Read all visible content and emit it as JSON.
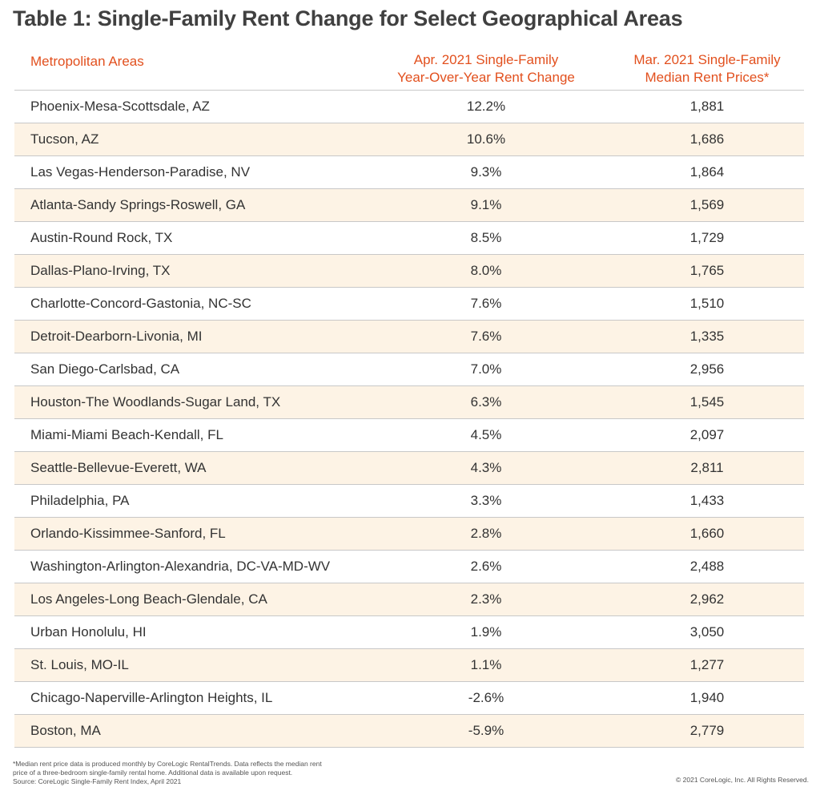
{
  "title": "Table 1: Single-Family Rent Change for Select Geographical Areas",
  "headers": {
    "area": "Metropolitan Areas",
    "change_line1": "Apr. 2021 Single-Family",
    "change_line2": "Year-Over-Year Rent Change",
    "rent_line1": "Mar. 2021 Single-Family",
    "rent_line2": "Median Rent Prices*"
  },
  "rows": [
    {
      "area": "Phoenix-Mesa-Scottsdale, AZ",
      "change": "12.2%",
      "rent": "1,881"
    },
    {
      "area": "Tucson, AZ",
      "change": "10.6%",
      "rent": "1,686"
    },
    {
      "area": "Las Vegas-Henderson-Paradise, NV",
      "change": "9.3%",
      "rent": "1,864"
    },
    {
      "area": "Atlanta-Sandy Springs-Roswell, GA",
      "change": "9.1%",
      "rent": "1,569"
    },
    {
      "area": "Austin-Round Rock, TX",
      "change": "8.5%",
      "rent": "1,729"
    },
    {
      "area": "Dallas-Plano-Irving, TX",
      "change": "8.0%",
      "rent": "1,765"
    },
    {
      "area": "Charlotte-Concord-Gastonia, NC-SC",
      "change": "7.6%",
      "rent": "1,510"
    },
    {
      "area": "Detroit-Dearborn-Livonia, MI",
      "change": "7.6%",
      "rent": "1,335"
    },
    {
      "area": "San Diego-Carlsbad, CA",
      "change": "7.0%",
      "rent": "2,956"
    },
    {
      "area": "Houston-The Woodlands-Sugar Land, TX",
      "change": "6.3%",
      "rent": "1,545"
    },
    {
      "area": "Miami-Miami Beach-Kendall, FL",
      "change": "4.5%",
      "rent": "2,097"
    },
    {
      "area": "Seattle-Bellevue-Everett, WA",
      "change": "4.3%",
      "rent": "2,811"
    },
    {
      "area": "Philadelphia, PA",
      "change": "3.3%",
      "rent": "1,433"
    },
    {
      "area": "Orlando-Kissimmee-Sanford, FL",
      "change": "2.8%",
      "rent": "1,660"
    },
    {
      "area": "Washington-Arlington-Alexandria, DC-VA-MD-WV",
      "change": "2.6%",
      "rent": "2,488"
    },
    {
      "area": "Los Angeles-Long Beach-Glendale, CA",
      "change": "2.3%",
      "rent": "2,962"
    },
    {
      "area": "Urban Honolulu, HI",
      "change": "1.9%",
      "rent": "3,050"
    },
    {
      "area": "St. Louis, MO-IL",
      "change": "1.1%",
      "rent": "1,277"
    },
    {
      "area": "Chicago-Naperville-Arlington Heights, IL",
      "change": "-2.6%",
      "rent": "1,940"
    },
    {
      "area": "Boston, MA",
      "change": "-5.9%",
      "rent": "2,779"
    }
  ],
  "footnote_line1": "*Median rent price data is produced monthly by CoreLogic RentalTrends. Data reflects the median rent",
  "footnote_line2": "price of a three-bedroom single-family rental home. Additional data is available upon request.",
  "source": "Source: CoreLogic Single-Family Rent Index, April 2021",
  "copyright": "© 2021 CoreLogic, Inc. All Rights Reserved.",
  "colors": {
    "header_text": "#e2501e",
    "alt_row": "#fdf3e5",
    "rule": "#c8c8c8"
  }
}
